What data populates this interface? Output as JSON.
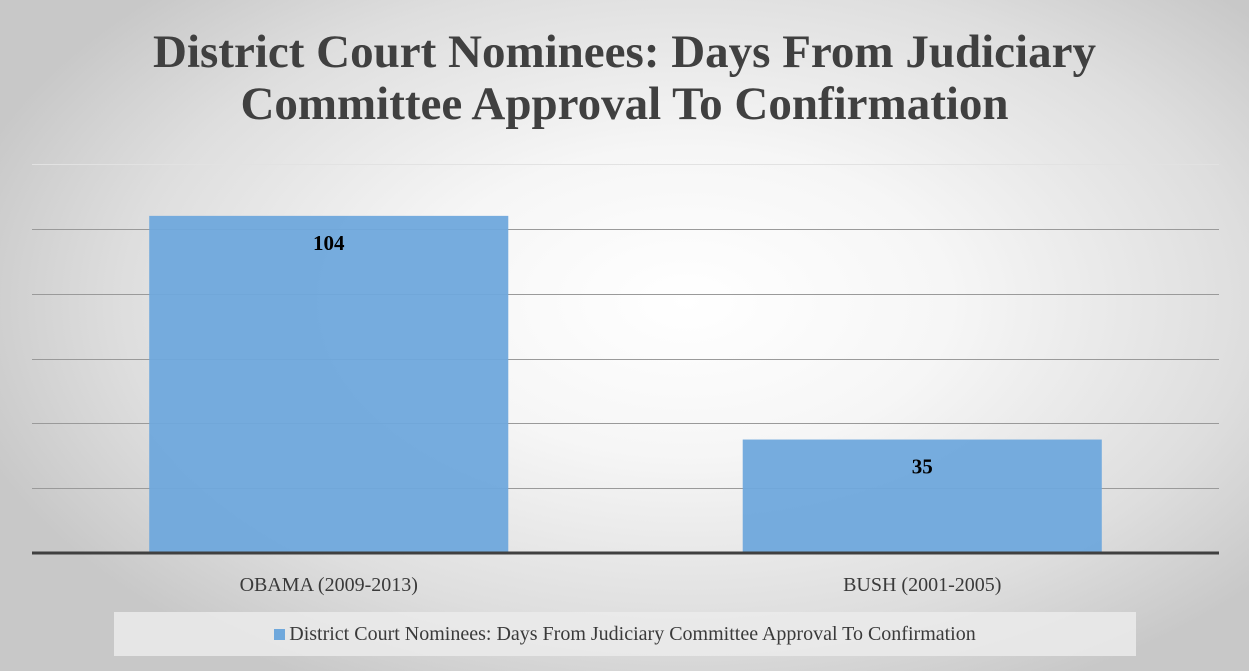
{
  "chart_data": {
    "type": "bar",
    "title": "District Court Nominees: Days From Judiciary Committee Approval To Confirmation",
    "title_lines": [
      "District Court Nominees: Days From Judiciary",
      "Committee Approval To Confirmation"
    ],
    "categories": [
      "OBAMA (2009-2013)",
      "BUSH (2001-2005)"
    ],
    "series": [
      {
        "name": "District Court Nominees: Days From Judiciary Committee Approval To Confirmation",
        "values": [
          104,
          35
        ],
        "color": "#6fa8dc"
      }
    ],
    "data_labels": [
      "104",
      "35"
    ],
    "ylim": [
      0,
      120
    ],
    "y_gridline_step": 20,
    "y_axis_labels_visible": false,
    "grid": true,
    "legend_position": "bottom",
    "xlabel": "",
    "ylabel": ""
  }
}
